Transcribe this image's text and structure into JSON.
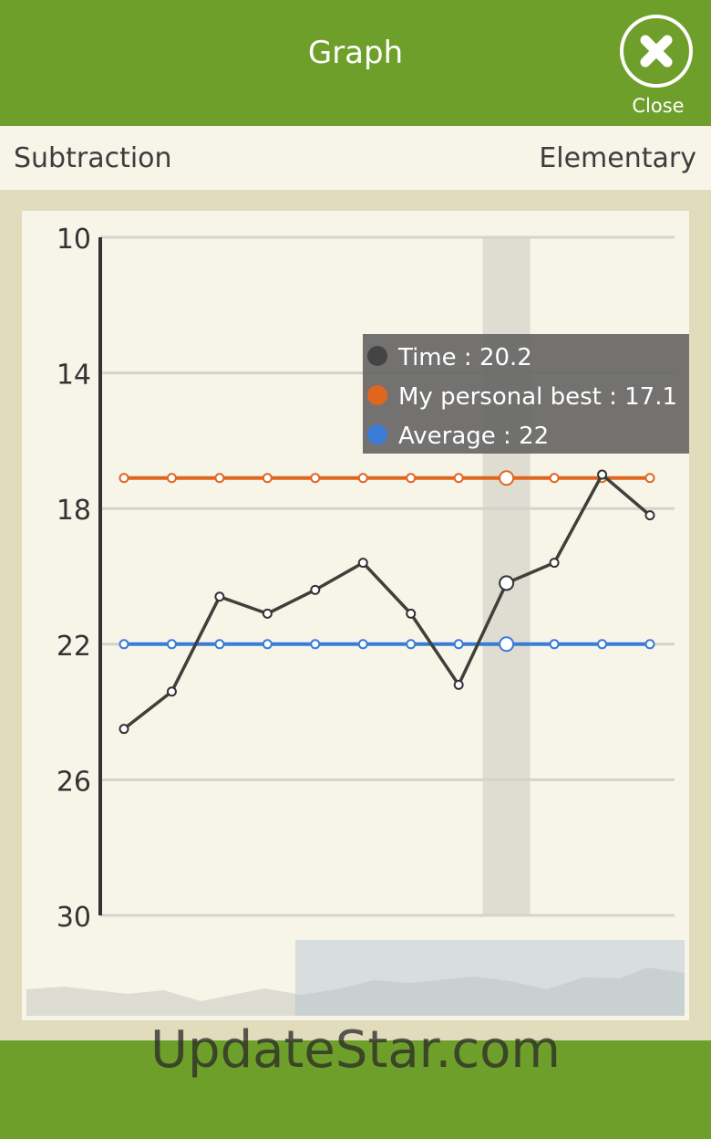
{
  "header": {
    "title": "Graph",
    "close": "Close"
  },
  "subheader": {
    "left": "Subtraction",
    "right": "Elementary"
  },
  "watermark": "UpdateStar.com",
  "chart_data": {
    "type": "line",
    "categories": [
      null,
      null,
      null,
      null,
      null,
      null,
      null,
      null,
      null,
      null,
      null,
      null
    ],
    "series": [
      {
        "name": "Time",
        "color": "#3f3f3b",
        "values": [
          24.5,
          23.4,
          20.6,
          21.1,
          20.4,
          19.6,
          21.1,
          23.2,
          20.2,
          19.6,
          17.0,
          18.2
        ]
      },
      {
        "name": "My personal best",
        "color": "#e0661e",
        "values": [
          17.1,
          17.1,
          17.1,
          17.1,
          17.1,
          17.1,
          17.1,
          17.1,
          17.1,
          17.1,
          17.1,
          17.1
        ]
      },
      {
        "name": "Average",
        "color": "#3a7bd5",
        "values": [
          22,
          22,
          22,
          22,
          22,
          22,
          22,
          22,
          22,
          22,
          22,
          22
        ]
      }
    ],
    "ylim": [
      10,
      30
    ],
    "yticks": [
      10,
      14,
      18,
      22,
      26,
      30
    ],
    "inverted": true,
    "grid": true,
    "highlight_index": 8,
    "tooltip_separator": " : "
  }
}
